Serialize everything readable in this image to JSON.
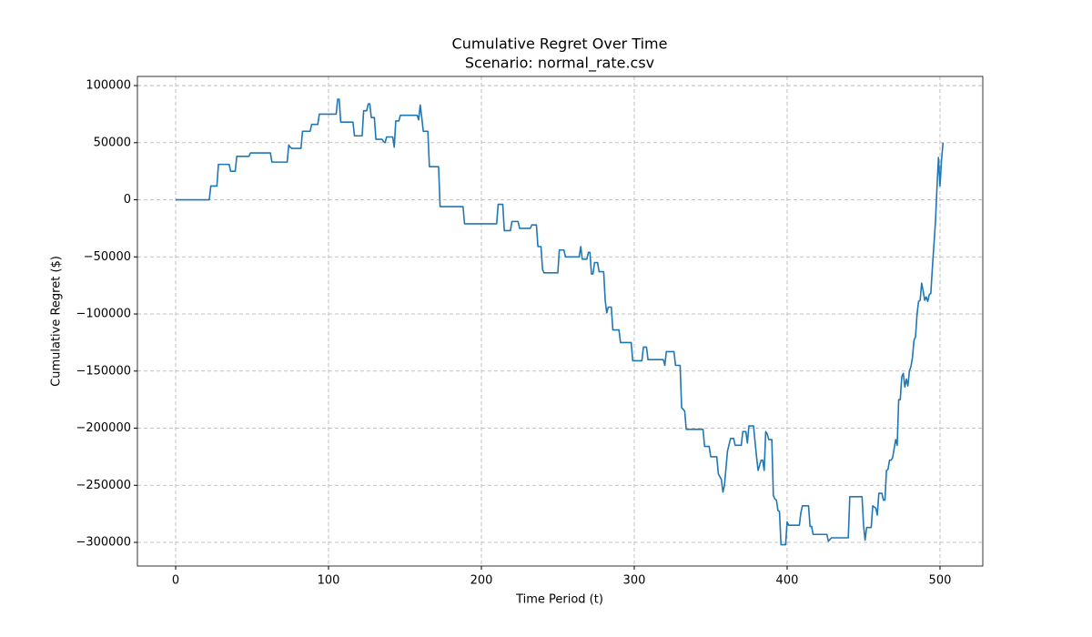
{
  "chart_data": {
    "type": "line",
    "title": "Cumulative Regret Over Time",
    "subtitle": "Scenario: normal_rate.csv",
    "x_label": "Time Period (t)",
    "y_label": "Cumulative Regret ($)",
    "color": "#1f77b4",
    "grid": true,
    "xlim": [
      -25,
      528
    ],
    "ylim": [
      -320700,
      108000
    ],
    "xticks": [
      0,
      100,
      200,
      300,
      400,
      500
    ],
    "yticks": [
      {
        "value": -300000,
        "label": "−300000"
      },
      {
        "value": -250000,
        "label": "−250000"
      },
      {
        "value": -200000,
        "label": "−200000"
      },
      {
        "value": -150000,
        "label": "−150000"
      },
      {
        "value": -100000,
        "label": "−100000"
      },
      {
        "value": -50000,
        "label": "−50000"
      },
      0,
      50000,
      100000
    ],
    "x": [
      0,
      22,
      23,
      27,
      28,
      35,
      36,
      39,
      40,
      48,
      49,
      62,
      63,
      73,
      74,
      75,
      76,
      82,
      83,
      88,
      89,
      93,
      94,
      105,
      106,
      107,
      108,
      116,
      117,
      122,
      123,
      125,
      126,
      127,
      128,
      130,
      131,
      135,
      136,
      137,
      138,
      142,
      143,
      144,
      146,
      147,
      158,
      159,
      160,
      161,
      162,
      165,
      166,
      172,
      173,
      188,
      189,
      210,
      211,
      214,
      215,
      219,
      220,
      224,
      225,
      232,
      233,
      236,
      237,
      239,
      240,
      241,
      250,
      251,
      254,
      255,
      264,
      265,
      266,
      269,
      270,
      271,
      272,
      273,
      274,
      276,
      277,
      280,
      281,
      282,
      283,
      285,
      286,
      290,
      291,
      298,
      299,
      305,
      306,
      308,
      309,
      319,
      320,
      321,
      326,
      327,
      330,
      331,
      333,
      334,
      345,
      346,
      349,
      350,
      354,
      355,
      357,
      358,
      359,
      361,
      363,
      365,
      366,
      370,
      371,
      373,
      374,
      375,
      378,
      380,
      381,
      383,
      384,
      385,
      386,
      387,
      388,
      390,
      391,
      392,
      393,
      394,
      395,
      396,
      399,
      400,
      401,
      408,
      409,
      410,
      414,
      415,
      416,
      417,
      426,
      427,
      429,
      440,
      441,
      449,
      450,
      451,
      452,
      455,
      456,
      458,
      459,
      460,
      462,
      463,
      464,
      465,
      466,
      467,
      468,
      469,
      470,
      471,
      472,
      473,
      474,
      475,
      476,
      477,
      478,
      479,
      480,
      481,
      482,
      483,
      484,
      485,
      486,
      487,
      488,
      489,
      490,
      491,
      492,
      493,
      494,
      495,
      496,
      497,
      498,
      499,
      500,
      501,
      502
    ],
    "values": [
      0,
      0,
      12000,
      12000,
      31000,
      31000,
      25000,
      25000,
      38000,
      38000,
      41000,
      41000,
      33000,
      33000,
      48000,
      46000,
      45000,
      45000,
      60000,
      60000,
      66000,
      66000,
      75000,
      75000,
      88000,
      88000,
      68000,
      68000,
      56000,
      56000,
      78000,
      78000,
      84000,
      84000,
      72000,
      72000,
      53000,
      53000,
      51000,
      50000,
      55000,
      55000,
      46000,
      69000,
      69000,
      74000,
      74000,
      70000,
      83000,
      72000,
      60000,
      60000,
      29000,
      29000,
      -6000,
      -6000,
      -21000,
      -21000,
      -4000,
      -4000,
      -27000,
      -27000,
      -19000,
      -19000,
      -25000,
      -25000,
      -22000,
      -22000,
      -41000,
      -41000,
      -61000,
      -64000,
      -64000,
      -44000,
      -44000,
      -50000,
      -50000,
      -41000,
      -52000,
      -52000,
      -46000,
      -46000,
      -65000,
      -65000,
      -55000,
      -55000,
      -63000,
      -63000,
      -88000,
      -99000,
      -94000,
      -94000,
      -114000,
      -114000,
      -125000,
      -125000,
      -141000,
      -141000,
      -129000,
      -129000,
      -140000,
      -140000,
      -145000,
      -133000,
      -133000,
      -145000,
      -145000,
      -182000,
      -185000,
      -201000,
      -201000,
      -216000,
      -216000,
      -225000,
      -225000,
      -240000,
      -245000,
      -256000,
      -250000,
      -220000,
      -209000,
      -209000,
      -215000,
      -215000,
      -203000,
      -203000,
      -213000,
      -198000,
      -198000,
      -225000,
      -237000,
      -228000,
      -228000,
      -237000,
      -203000,
      -205000,
      -210000,
      -210000,
      -259000,
      -262000,
      -263000,
      -272000,
      -273000,
      -302000,
      -302000,
      -282000,
      -285000,
      -285000,
      -274000,
      -268000,
      -268000,
      -286000,
      -286000,
      -293000,
      -293000,
      -299000,
      -296000,
      -296000,
      -260000,
      -260000,
      -285000,
      -298000,
      -287000,
      -287000,
      -268000,
      -270000,
      -276000,
      -257000,
      -257000,
      -263000,
      -263000,
      -237000,
      -236000,
      -228000,
      -228000,
      -226000,
      -218000,
      -210000,
      -215000,
      -175000,
      -175000,
      -155000,
      -152000,
      -164000,
      -157000,
      -163000,
      -150000,
      -146000,
      -138000,
      -123000,
      -120000,
      -100000,
      -89000,
      -88000,
      -73000,
      -80000,
      -88000,
      -85000,
      -89000,
      -83000,
      -82000,
      -60000,
      -40000,
      -20000,
      10000,
      37000,
      12000,
      35000,
      50000
    ]
  }
}
